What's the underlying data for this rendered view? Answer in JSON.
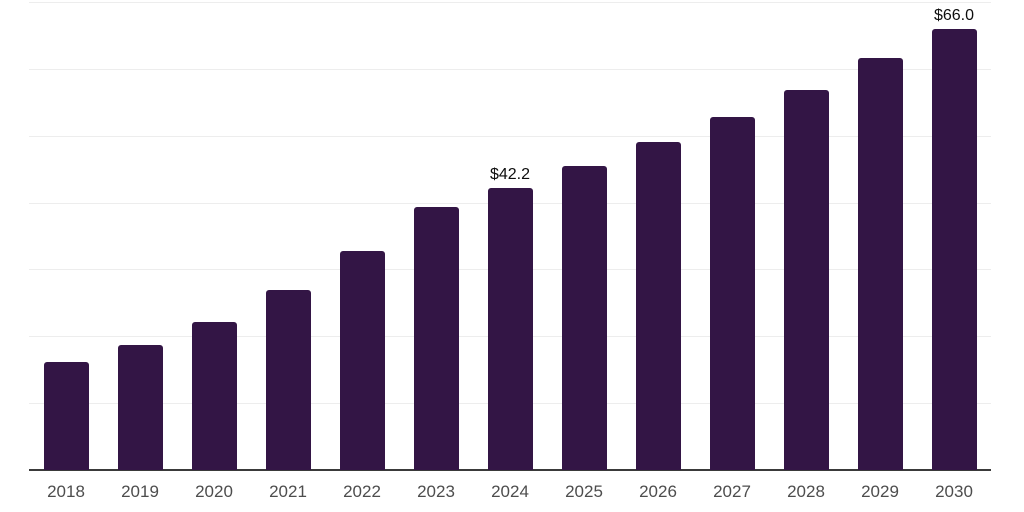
{
  "chart_data": {
    "type": "bar",
    "title": "",
    "xlabel": "",
    "ylabel": "",
    "categories": [
      "2018",
      "2019",
      "2020",
      "2021",
      "2022",
      "2023",
      "2024",
      "2025",
      "2026",
      "2027",
      "2028",
      "2029",
      "2030"
    ],
    "values": [
      16.2,
      18.7,
      22.2,
      27.0,
      32.8,
      39.3,
      42.2,
      45.5,
      49.1,
      52.8,
      56.9,
      61.6,
      66.0
    ],
    "data_labels": [
      "",
      "",
      "",
      "",
      "",
      "",
      "$42.2",
      "",
      "",
      "",
      "",
      "",
      "$66.0"
    ],
    "ylim": [
      0,
      70
    ],
    "gridline_step": 10,
    "grid": "horizontal-only",
    "legend_position": "none",
    "y_axis_tick_labels": "none",
    "colors": {
      "bar": "#331545",
      "axis_line": "#3a3a3a",
      "gridline": "#ededed",
      "x_tick_label": "#4d4d4d",
      "value_label": "#0d0d0d",
      "background": "#ffffff"
    }
  }
}
